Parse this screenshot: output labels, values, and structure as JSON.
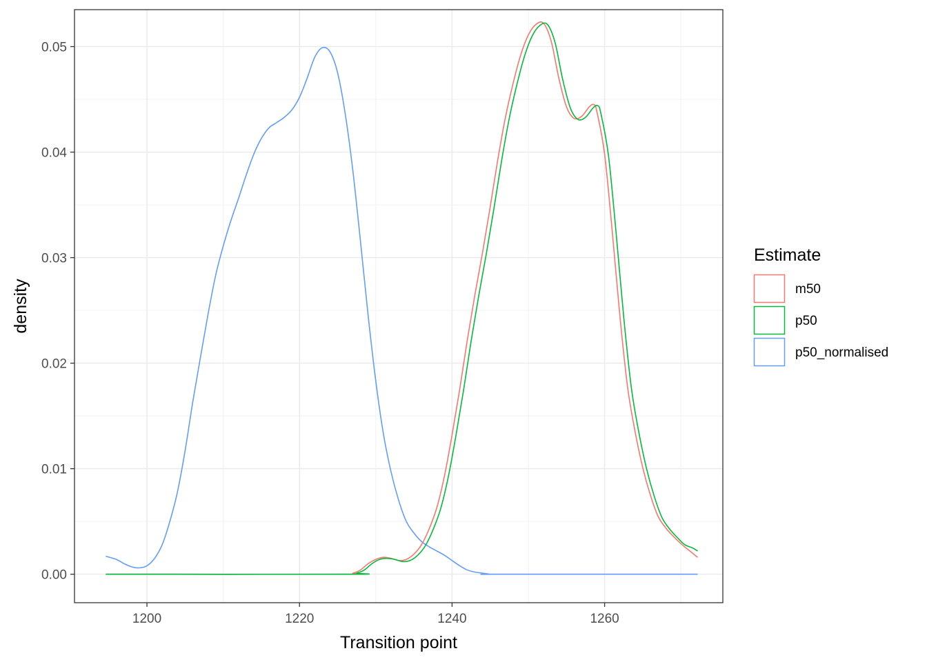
{
  "chart_data": {
    "type": "line",
    "xlabel": "Transition point",
    "ylabel": "density",
    "xlim": [
      1190.5,
      1275.5
    ],
    "ylim": [
      -0.0027,
      0.0535
    ],
    "x_ticks": [
      1200,
      1220,
      1240,
      1260
    ],
    "x_tick_labels": [
      "1200",
      "1220",
      "1240",
      "1260"
    ],
    "y_ticks": [
      0,
      0.01,
      0.02,
      0.03,
      0.04,
      0.05
    ],
    "y_tick_labels": [
      "0.00",
      "0.01",
      "0.02",
      "0.03",
      "0.04",
      "0.05"
    ],
    "grid": true,
    "legend": {
      "title": "Estimate",
      "position": "right",
      "items": [
        "m50",
        "p50",
        "p50_normalised"
      ]
    },
    "series": [
      {
        "name": "m50",
        "color": "#F8766D",
        "x": [
          1194.6,
          1226,
          1227,
          1228,
          1229,
          1230,
          1231,
          1232,
          1233,
          1234,
          1235,
          1236,
          1237,
          1238,
          1239,
          1240,
          1241,
          1242,
          1243,
          1244,
          1245,
          1246,
          1247,
          1248,
          1249,
          1250,
          1251,
          1252,
          1253,
          1254,
          1255,
          1256,
          1257,
          1258,
          1258.6,
          1259,
          1260,
          1261,
          1262,
          1263,
          1264,
          1265,
          1266,
          1267,
          1268,
          1269,
          1270,
          1271,
          1272.2
        ],
        "y": [
          0,
          0,
          0.0001,
          0.0004,
          0.001,
          0.0014,
          0.0016,
          0.0015,
          0.0013,
          0.0014,
          0.0019,
          0.0028,
          0.0043,
          0.0063,
          0.0093,
          0.0132,
          0.0175,
          0.0222,
          0.0265,
          0.0305,
          0.0348,
          0.0393,
          0.0433,
          0.0465,
          0.0492,
          0.0511,
          0.0521,
          0.0522,
          0.0505,
          0.047,
          0.0443,
          0.0432,
          0.0434,
          0.0443,
          0.0445,
          0.0438,
          0.0398,
          0.0325,
          0.0245,
          0.0178,
          0.0135,
          0.0101,
          0.0075,
          0.0055,
          0.0044,
          0.0036,
          0.0029,
          0.0023,
          0.0016
        ]
      },
      {
        "name": "p50",
        "color": "#00BA38",
        "x": [
          1194.6,
          1226.5,
          1227.5,
          1228.5,
          1229.5,
          1230.5,
          1231.5,
          1232.5,
          1233.5,
          1234.5,
          1235.5,
          1236.5,
          1237.5,
          1238.5,
          1239.5,
          1240.5,
          1241.5,
          1242.5,
          1243.5,
          1244.5,
          1245.5,
          1246.5,
          1247.5,
          1248.5,
          1249.5,
          1250.5,
          1251.5,
          1252.5,
          1253.5,
          1254.5,
          1255.5,
          1256.5,
          1257.5,
          1258.5,
          1259.1,
          1259.5,
          1260.5,
          1261.5,
          1262.5,
          1263.5,
          1264.5,
          1265.5,
          1266.5,
          1267.5,
          1268.5,
          1269.5,
          1270.5,
          1271.5,
          1272.2
        ],
        "y": [
          0,
          0,
          0.0001,
          0.0004,
          0.001,
          0.0014,
          0.0015,
          0.0014,
          0.0012,
          0.0013,
          0.0018,
          0.0027,
          0.0042,
          0.0062,
          0.0092,
          0.0131,
          0.0174,
          0.0221,
          0.0264,
          0.0304,
          0.0347,
          0.0392,
          0.0432,
          0.0464,
          0.0491,
          0.051,
          0.052,
          0.0521,
          0.0504,
          0.0469,
          0.0442,
          0.0431,
          0.0433,
          0.0442,
          0.0444,
          0.0437,
          0.0397,
          0.0324,
          0.0244,
          0.0177,
          0.0134,
          0.01,
          0.0074,
          0.0054,
          0.0043,
          0.0035,
          0.0028,
          0.0025,
          0.0022
        ]
      },
      {
        "name": "p50_normalised",
        "color": "#619CFF",
        "x": [
          1194.6,
          1196,
          1197,
          1198,
          1199,
          1200,
          1201,
          1202,
          1203,
          1204,
          1205,
          1206,
          1207,
          1208,
          1209,
          1210,
          1211,
          1212,
          1213,
          1214,
          1215,
          1216,
          1217,
          1218,
          1219,
          1220,
          1221,
          1222,
          1223,
          1224,
          1225,
          1226,
          1227,
          1228,
          1229,
          1230,
          1231,
          1232,
          1233,
          1234,
          1235,
          1236,
          1237,
          1238,
          1239,
          1240,
          1241,
          1242,
          1243,
          1244,
          1245,
          1246,
          1272.2
        ],
        "y": [
          0.0017,
          0.0014,
          0.001,
          0.0007,
          0.0006,
          0.0008,
          0.0015,
          0.0028,
          0.005,
          0.0078,
          0.0117,
          0.0163,
          0.0205,
          0.0246,
          0.0283,
          0.0311,
          0.0335,
          0.0356,
          0.0378,
          0.0398,
          0.0413,
          0.0423,
          0.0428,
          0.0433,
          0.044,
          0.0452,
          0.047,
          0.049,
          0.0499,
          0.0495,
          0.0475,
          0.0436,
          0.0382,
          0.0315,
          0.0245,
          0.0183,
          0.0133,
          0.0097,
          0.007,
          0.005,
          0.0039,
          0.0031,
          0.0026,
          0.0022,
          0.0018,
          0.0013,
          0.0008,
          0.0004,
          0.0002,
          0.0001,
          0,
          0,
          0
        ]
      }
    ]
  }
}
